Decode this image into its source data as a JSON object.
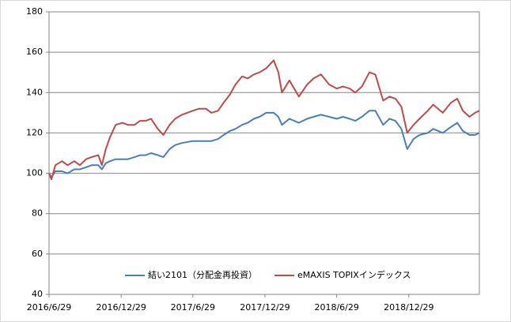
{
  "chart_data": {
    "type": "line",
    "x": [
      "2016/6/29",
      "2016/7/5",
      "2016/7/15",
      "2016/8/1",
      "2016/8/15",
      "2016/9/1",
      "2016/9/15",
      "2016/10/1",
      "2016/10/15",
      "2016/11/1",
      "2016/11/10",
      "2016/11/20",
      "2016/12/1",
      "2016/12/15",
      "2017/1/1",
      "2017/1/15",
      "2017/2/1",
      "2017/2/15",
      "2017/3/1",
      "2017/3/15",
      "2017/4/1",
      "2017/4/15",
      "2017/5/1",
      "2017/5/15",
      "2017/6/1",
      "2017/6/29",
      "2017/7/15",
      "2017/8/1",
      "2017/8/15",
      "2017/9/1",
      "2017/9/15",
      "2017/10/1",
      "2017/10/15",
      "2017/11/1",
      "2017/11/15",
      "2017/12/1",
      "2017/12/15",
      "2018/1/1",
      "2018/1/20",
      "2018/2/1",
      "2018/2/10",
      "2018/3/1",
      "2018/3/25",
      "2018/4/15",
      "2018/5/1",
      "2018/5/20",
      "2018/6/10",
      "2018/6/29",
      "2018/7/15",
      "2018/8/1",
      "2018/8/15",
      "2018/9/1",
      "2018/9/20",
      "2018/10/5",
      "2018/10/25",
      "2018/11/10",
      "2018/11/25",
      "2018/12/10",
      "2018/12/25",
      "2019/1/10",
      "2019/1/25",
      "2019/2/15",
      "2019/3/1",
      "2019/3/25",
      "2019/4/15",
      "2019/5/1",
      "2019/5/15",
      "2019/6/1",
      "2019/6/15",
      "2019/6/26"
    ],
    "series": [
      {
        "name": "結い2101（分配金再投資）",
        "color": "#4a7ebb",
        "values": [
          100,
          98,
          101,
          101,
          100,
          102,
          102,
          103,
          104,
          104,
          102,
          105,
          106,
          107,
          107,
          107,
          108,
          109,
          109,
          110,
          109,
          108,
          112,
          114,
          115,
          116,
          116,
          116,
          116,
          117,
          119,
          121,
          122,
          124,
          125,
          127,
          128,
          130,
          130,
          128,
          124,
          127,
          125,
          127,
          128,
          129,
          128,
          127,
          128,
          127,
          126,
          128,
          131,
          131,
          124,
          127,
          126,
          122,
          112,
          117,
          119,
          120,
          122,
          120,
          123,
          125,
          121,
          119,
          119,
          120
        ]
      },
      {
        "name": "eMAXIS TOPIXインデックス",
        "color": "#be4b48",
        "values": [
          100,
          97,
          104,
          106,
          104,
          106,
          104,
          107,
          108,
          109,
          104,
          112,
          118,
          124,
          125,
          124,
          124,
          126,
          126,
          127,
          122,
          119,
          124,
          127,
          129,
          131,
          132,
          132,
          130,
          131,
          135,
          139,
          144,
          148,
          147,
          149,
          150,
          152,
          156,
          150,
          140,
          146,
          138,
          144,
          147,
          149,
          144,
          142,
          143,
          142,
          140,
          143,
          150,
          149,
          136,
          138,
          137,
          133,
          120,
          124,
          127,
          131,
          134,
          130,
          135,
          137,
          131,
          128,
          130,
          131
        ]
      }
    ],
    "ylim": [
      40,
      180
    ],
    "yticks": [
      40,
      60,
      80,
      100,
      120,
      140,
      160,
      180
    ],
    "xlim": [
      "2016/6/29",
      "2019/6/26"
    ],
    "xticks": [
      "2016/6/29",
      "2016/12/29",
      "2017/6/29",
      "2017/12/29",
      "2018/6/29",
      "2018/12/29"
    ],
    "grid": true,
    "legend": "bottom"
  }
}
